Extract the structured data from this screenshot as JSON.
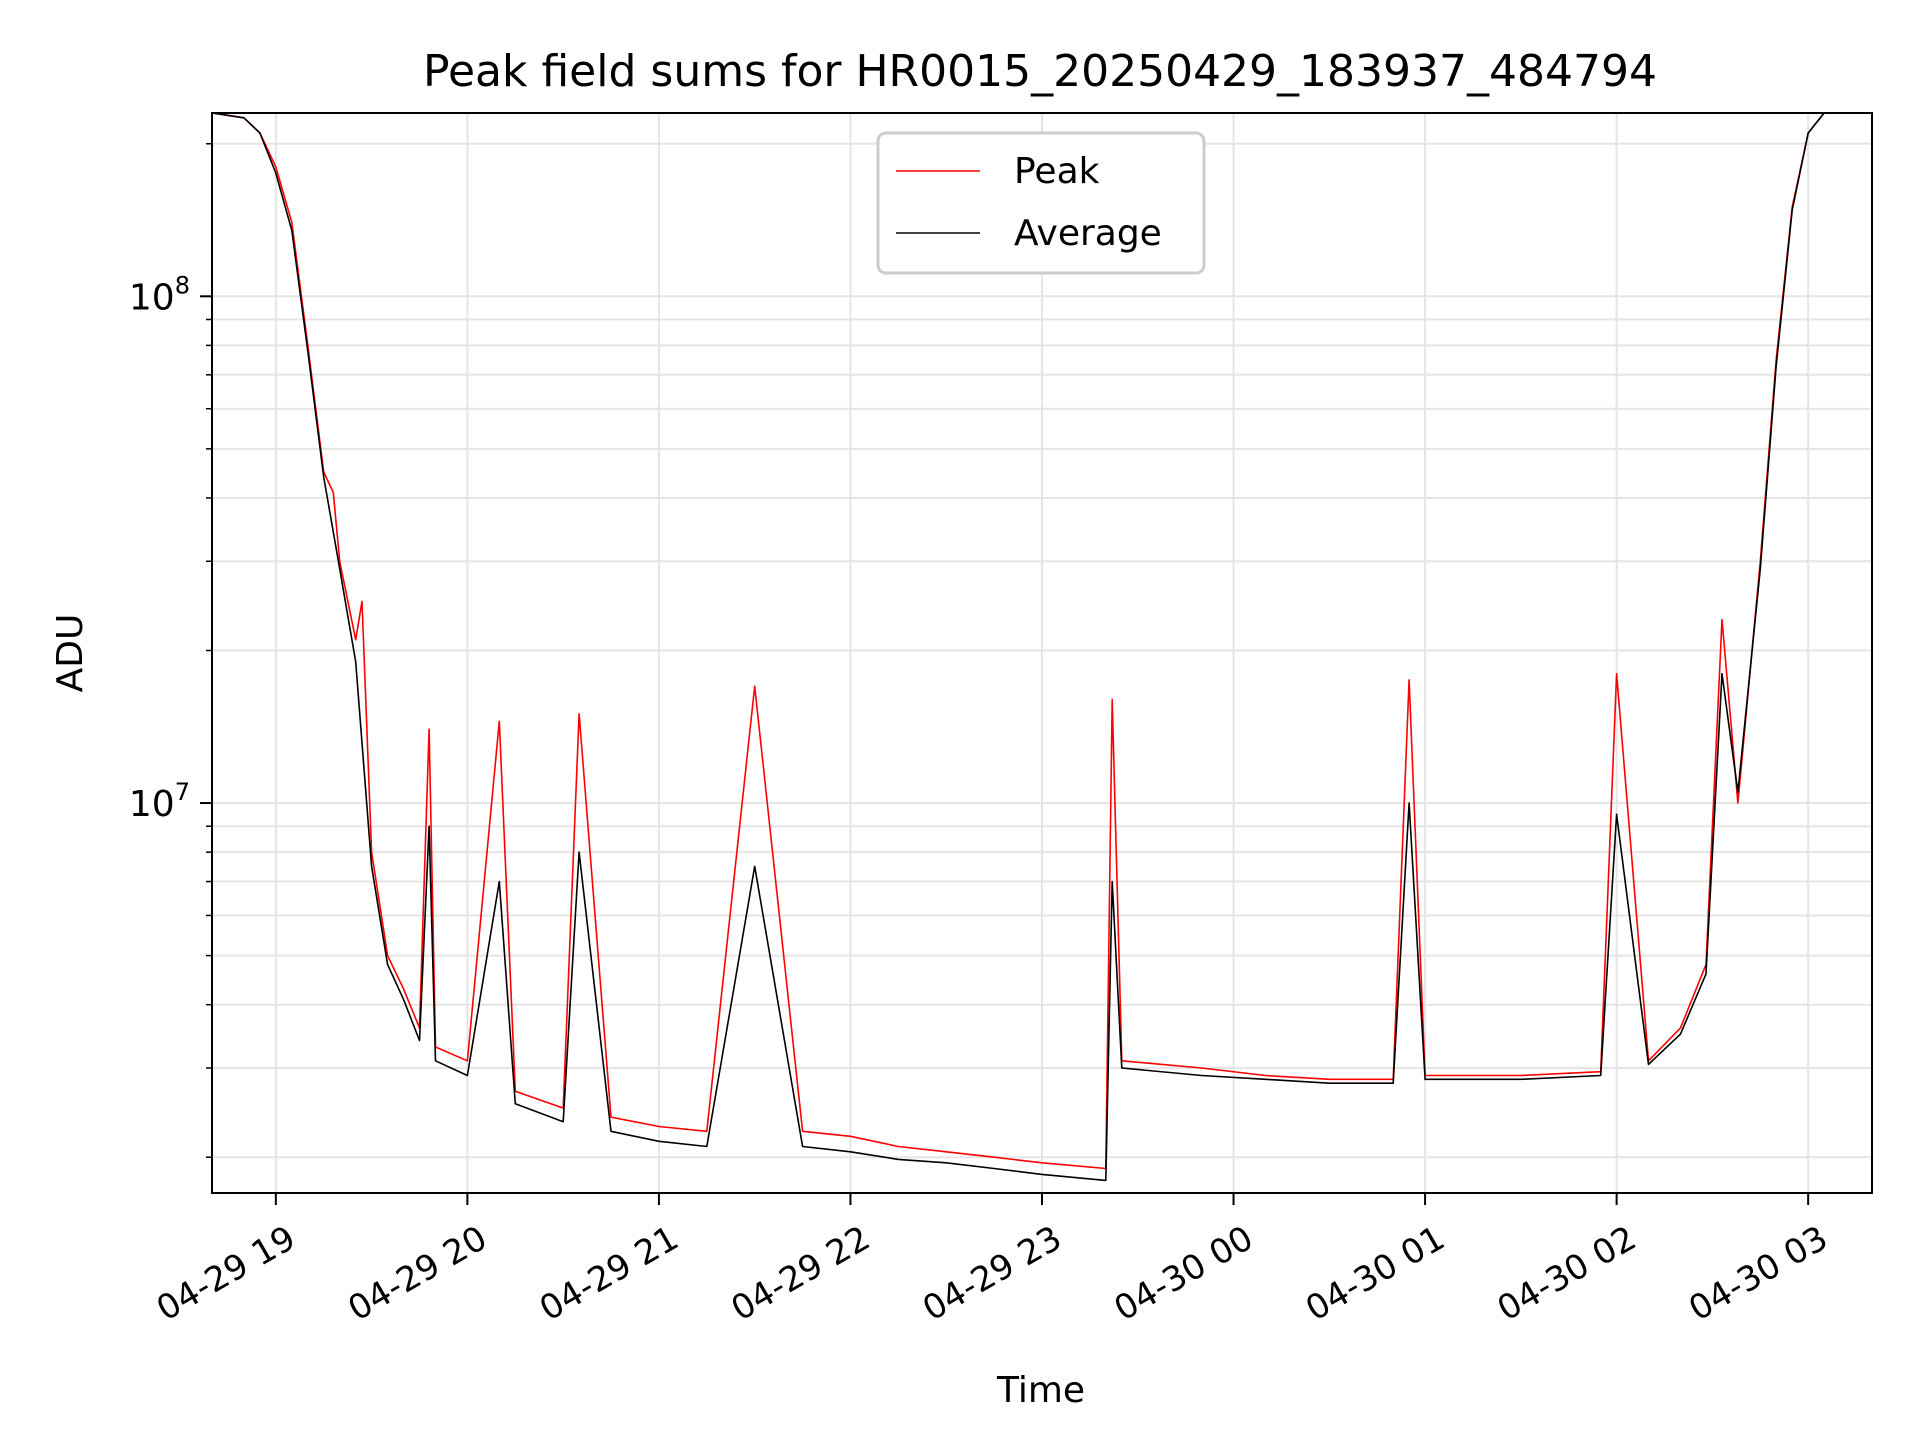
{
  "chart_data": {
    "type": "line",
    "title": "Peak field sums for HR0015_20250429_183937_484794",
    "xlabel": "Time",
    "ylabel": "ADU",
    "yscale": "log",
    "xlim": [
      "2025-04-29T18:40",
      "2025-04-30T03:20"
    ],
    "ylim": [
      1700000,
      230000000
    ],
    "x_ticks": [
      "04-29 19",
      "04-29 20",
      "04-29 21",
      "04-29 22",
      "04-29 23",
      "04-30 00",
      "04-30 01",
      "04-30 02",
      "04-30 03"
    ],
    "y_ticks": [
      {
        "value": 10000000,
        "base": "10",
        "exp": "7"
      },
      {
        "value": 100000000,
        "base": "10",
        "exp": "8"
      }
    ],
    "grid": true,
    "legend": {
      "placement": "top-center"
    },
    "series": [
      {
        "name": "Peak",
        "color": "#ff0000",
        "points": [
          [
            "2025-04-29T18:40",
            230000000
          ],
          [
            "2025-04-29T18:50",
            225000000
          ],
          [
            "2025-04-29T18:55",
            210000000
          ],
          [
            "2025-04-29T19:00",
            180000000
          ],
          [
            "2025-04-29T19:05",
            140000000
          ],
          [
            "2025-04-29T19:10",
            80000000
          ],
          [
            "2025-04-29T19:15",
            45000000
          ],
          [
            "2025-04-29T19:18",
            41000000
          ],
          [
            "2025-04-29T19:20",
            30000000
          ],
          [
            "2025-04-29T19:25",
            21000000
          ],
          [
            "2025-04-29T19:27",
            25000000
          ],
          [
            "2025-04-29T19:30",
            8000000
          ],
          [
            "2025-04-29T19:35",
            5000000
          ],
          [
            "2025-04-29T19:40",
            4300000
          ],
          [
            "2025-04-29T19:45",
            3600000
          ],
          [
            "2025-04-29T19:48",
            14000000
          ],
          [
            "2025-04-29T19:50",
            3300000
          ],
          [
            "2025-04-29T20:00",
            3100000
          ],
          [
            "2025-04-29T20:10",
            14500000
          ],
          [
            "2025-04-29T20:15",
            2700000
          ],
          [
            "2025-04-29T20:30",
            2500000
          ],
          [
            "2025-04-29T20:35",
            15000000
          ],
          [
            "2025-04-29T20:45",
            2400000
          ],
          [
            "2025-04-29T21:00",
            2300000
          ],
          [
            "2025-04-29T21:15",
            2250000
          ],
          [
            "2025-04-29T21:30",
            17000000
          ],
          [
            "2025-04-29T21:45",
            2250000
          ],
          [
            "2025-04-29T22:00",
            2200000
          ],
          [
            "2025-04-29T22:15",
            2100000
          ],
          [
            "2025-04-29T22:30",
            2050000
          ],
          [
            "2025-04-29T22:45",
            2000000
          ],
          [
            "2025-04-29T23:00",
            1950000
          ],
          [
            "2025-04-29T23:20",
            1900000
          ],
          [
            "2025-04-29T23:22",
            16000000
          ],
          [
            "2025-04-29T23:25",
            3100000
          ],
          [
            "2025-04-29T23:50",
            3000000
          ],
          [
            "2025-04-30T00:10",
            2900000
          ],
          [
            "2025-04-30T00:30",
            2850000
          ],
          [
            "2025-04-30T00:50",
            2850000
          ],
          [
            "2025-04-30T00:55",
            17500000
          ],
          [
            "2025-04-30T01:00",
            2900000
          ],
          [
            "2025-04-30T01:30",
            2900000
          ],
          [
            "2025-04-30T01:55",
            2950000
          ],
          [
            "2025-04-30T02:00",
            18000000
          ],
          [
            "2025-04-30T02:10",
            3100000
          ],
          [
            "2025-04-30T02:20",
            3600000
          ],
          [
            "2025-04-30T02:28",
            4800000
          ],
          [
            "2025-04-30T02:33",
            23000000
          ],
          [
            "2025-04-30T02:38",
            10000000
          ],
          [
            "2025-04-30T02:45",
            30000000
          ],
          [
            "2025-04-30T02:50",
            75000000
          ],
          [
            "2025-04-30T02:55",
            150000000
          ],
          [
            "2025-04-30T03:00",
            210000000
          ],
          [
            "2025-04-30T03:05",
            230000000
          ],
          [
            "2025-04-30T03:20",
            230000000
          ]
        ]
      },
      {
        "name": "Average",
        "color": "#000000",
        "points": [
          [
            "2025-04-29T18:40",
            230000000
          ],
          [
            "2025-04-29T18:50",
            225000000
          ],
          [
            "2025-04-29T18:55",
            210000000
          ],
          [
            "2025-04-29T19:00",
            175000000
          ],
          [
            "2025-04-29T19:05",
            135000000
          ],
          [
            "2025-04-29T19:10",
            78000000
          ],
          [
            "2025-04-29T19:15",
            44000000
          ],
          [
            "2025-04-29T19:20",
            29000000
          ],
          [
            "2025-04-29T19:25",
            19000000
          ],
          [
            "2025-04-29T19:30",
            7500000
          ],
          [
            "2025-04-29T19:35",
            4800000
          ],
          [
            "2025-04-29T19:40",
            4100000
          ],
          [
            "2025-04-29T19:45",
            3400000
          ],
          [
            "2025-04-29T19:48",
            9000000
          ],
          [
            "2025-04-29T19:50",
            3100000
          ],
          [
            "2025-04-29T20:00",
            2900000
          ],
          [
            "2025-04-29T20:10",
            7000000
          ],
          [
            "2025-04-29T20:15",
            2550000
          ],
          [
            "2025-04-29T20:30",
            2350000
          ],
          [
            "2025-04-29T20:35",
            8000000
          ],
          [
            "2025-04-29T20:45",
            2250000
          ],
          [
            "2025-04-29T21:00",
            2150000
          ],
          [
            "2025-04-29T21:15",
            2100000
          ],
          [
            "2025-04-29T21:30",
            7500000
          ],
          [
            "2025-04-29T21:45",
            2100000
          ],
          [
            "2025-04-29T22:00",
            2050000
          ],
          [
            "2025-04-29T22:15",
            1980000
          ],
          [
            "2025-04-29T22:30",
            1950000
          ],
          [
            "2025-04-29T22:45",
            1900000
          ],
          [
            "2025-04-29T23:00",
            1850000
          ],
          [
            "2025-04-29T23:20",
            1800000
          ],
          [
            "2025-04-29T23:22",
            7000000
          ],
          [
            "2025-04-29T23:25",
            3000000
          ],
          [
            "2025-04-29T23:50",
            2900000
          ],
          [
            "2025-04-30T00:10",
            2850000
          ],
          [
            "2025-04-30T00:30",
            2800000
          ],
          [
            "2025-04-30T00:50",
            2800000
          ],
          [
            "2025-04-30T00:55",
            10000000
          ],
          [
            "2025-04-30T01:00",
            2850000
          ],
          [
            "2025-04-30T01:30",
            2850000
          ],
          [
            "2025-04-30T01:55",
            2900000
          ],
          [
            "2025-04-30T02:00",
            9500000
          ],
          [
            "2025-04-30T02:10",
            3050000
          ],
          [
            "2025-04-30T02:20",
            3500000
          ],
          [
            "2025-04-30T02:28",
            4600000
          ],
          [
            "2025-04-30T02:33",
            18000000
          ],
          [
            "2025-04-30T02:38",
            10500000
          ],
          [
            "2025-04-30T02:45",
            29000000
          ],
          [
            "2025-04-30T02:50",
            73000000
          ],
          [
            "2025-04-30T02:55",
            148000000
          ],
          [
            "2025-04-30T03:00",
            210000000
          ],
          [
            "2025-04-30T03:05",
            230000000
          ],
          [
            "2025-04-30T03:20",
            230000000
          ]
        ]
      }
    ]
  }
}
